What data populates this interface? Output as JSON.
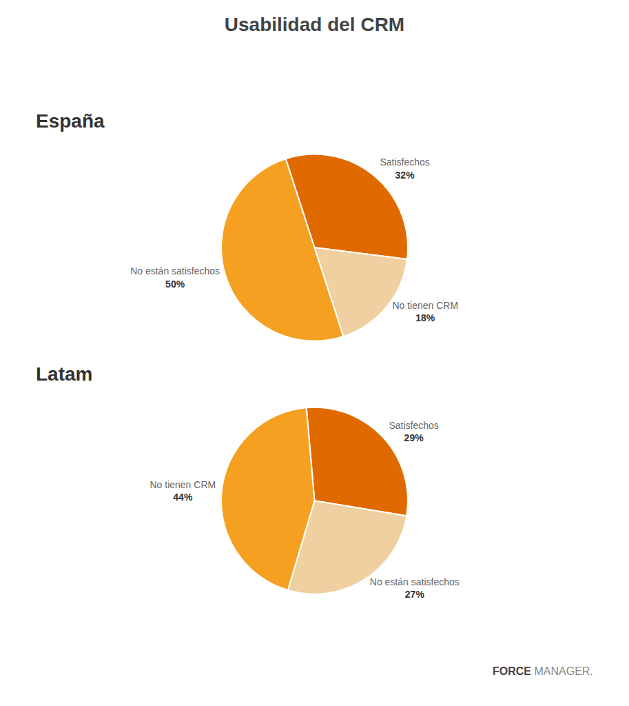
{
  "title": "Usabilidad del CRM",
  "chart_data": [
    {
      "type": "pie",
      "title": "España",
      "categories": [
        "Satisfechos",
        "No tienen CRM",
        "No están satisfechos"
      ],
      "values": [
        32,
        18,
        50
      ],
      "value_labels": [
        "32%",
        "18%",
        "50%"
      ],
      "colors": [
        "#E06A00",
        "#F0D0A0",
        "#F5A020"
      ],
      "data_labels": true
    },
    {
      "type": "pie",
      "title": "Latam",
      "categories": [
        "Satisfechos",
        "No están satisfechos",
        "No tienen CRM"
      ],
      "values": [
        29,
        27,
        44
      ],
      "value_labels": [
        "29%",
        "27%",
        "44%"
      ],
      "colors": [
        "#E06A00",
        "#F0D0A0",
        "#F5A020"
      ],
      "data_labels": true
    }
  ],
  "annotations": [
    "FORCE",
    "MANAGER."
  ]
}
